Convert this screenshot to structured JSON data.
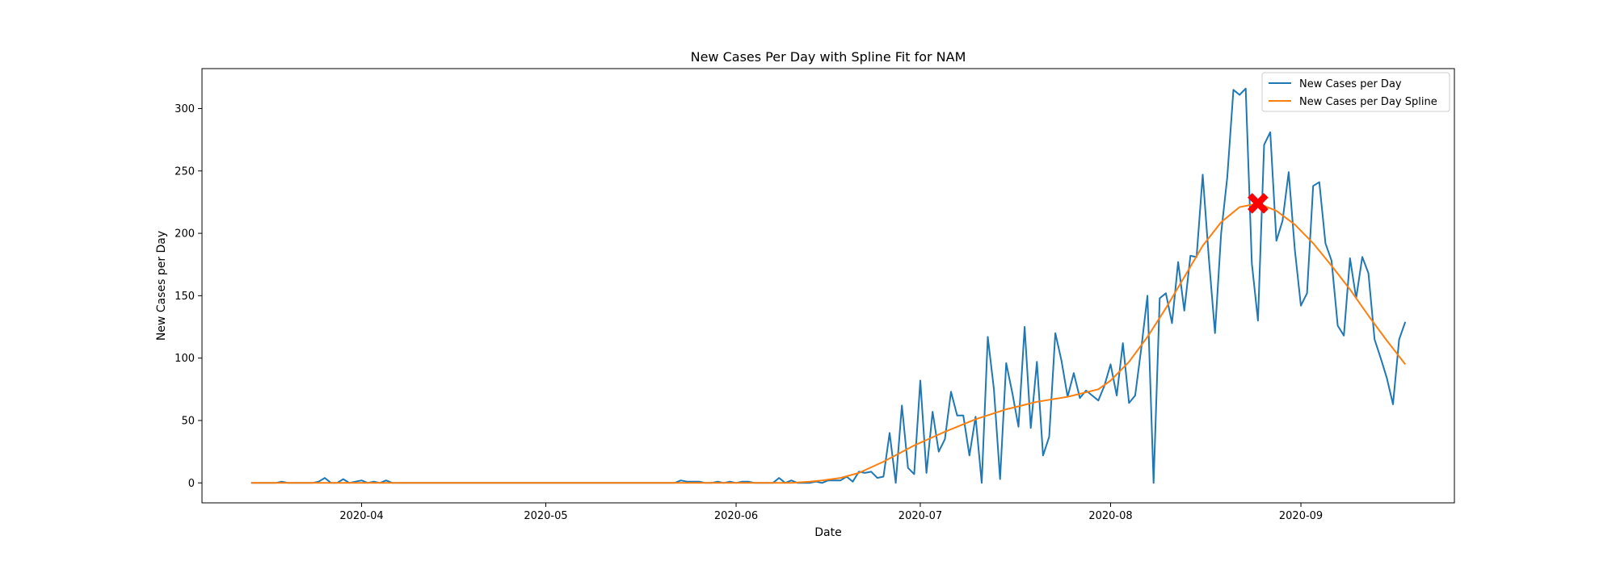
{
  "chart_data": {
    "type": "line",
    "title": "New Cases Per Day with Spline Fit for NAM",
    "xlabel": "Date",
    "ylabel": "New Cases per Day",
    "x_ticks": [
      "2020-04",
      "2020-05",
      "2020-06",
      "2020-07",
      "2020-08",
      "2020-09"
    ],
    "y_ticks": [
      0,
      50,
      100,
      150,
      200,
      250,
      300
    ],
    "xlim": [
      "2020-03-06",
      "2020-09-26"
    ],
    "ylim": [
      -16,
      332
    ],
    "legend": {
      "position": "top-right",
      "entries": [
        "New Cases per Day",
        "New Cases per Day Spline"
      ]
    },
    "grid": false,
    "colors": {
      "raw": "#1f77b4",
      "spline": "#ff7f0e",
      "peak_marker": "#ff0000"
    },
    "peak": {
      "date": "2020-08-25",
      "value": 224
    },
    "series": [
      {
        "name": "New Cases per Day",
        "color": "#1f77b4",
        "points": [
          [
            "2020-03-14",
            0
          ],
          [
            "2020-03-16",
            0
          ],
          [
            "2020-03-18",
            0
          ],
          [
            "2020-03-19",
            1
          ],
          [
            "2020-03-20",
            0
          ],
          [
            "2020-03-22",
            0
          ],
          [
            "2020-03-24",
            0
          ],
          [
            "2020-03-25",
            1
          ],
          [
            "2020-03-26",
            4
          ],
          [
            "2020-03-27",
            0
          ],
          [
            "2020-03-28",
            0
          ],
          [
            "2020-03-29",
            3
          ],
          [
            "2020-03-30",
            0
          ],
          [
            "2020-03-31",
            1
          ],
          [
            "2020-04-01",
            2
          ],
          [
            "2020-04-02",
            0
          ],
          [
            "2020-04-03",
            1
          ],
          [
            "2020-04-04",
            0
          ],
          [
            "2020-04-05",
            2
          ],
          [
            "2020-04-06",
            0
          ],
          [
            "2020-04-08",
            0
          ],
          [
            "2020-04-15",
            0
          ],
          [
            "2020-05-01",
            0
          ],
          [
            "2020-05-20",
            0
          ],
          [
            "2020-05-22",
            0
          ],
          [
            "2020-05-23",
            2
          ],
          [
            "2020-05-24",
            1
          ],
          [
            "2020-05-25",
            1
          ],
          [
            "2020-05-26",
            1
          ],
          [
            "2020-05-27",
            0
          ],
          [
            "2020-05-28",
            0
          ],
          [
            "2020-05-29",
            1
          ],
          [
            "2020-05-30",
            0
          ],
          [
            "2020-05-31",
            1
          ],
          [
            "2020-06-01",
            0
          ],
          [
            "2020-06-02",
            1
          ],
          [
            "2020-06-03",
            1
          ],
          [
            "2020-06-04",
            0
          ],
          [
            "2020-06-07",
            0
          ],
          [
            "2020-06-08",
            4
          ],
          [
            "2020-06-09",
            0
          ],
          [
            "2020-06-10",
            2
          ],
          [
            "2020-06-11",
            0
          ],
          [
            "2020-06-13",
            0
          ],
          [
            "2020-06-14",
            1
          ],
          [
            "2020-06-15",
            0
          ],
          [
            "2020-06-16",
            2
          ],
          [
            "2020-06-17",
            2
          ],
          [
            "2020-06-18",
            2
          ],
          [
            "2020-06-19",
            5
          ],
          [
            "2020-06-20",
            1
          ],
          [
            "2020-06-21",
            9
          ],
          [
            "2020-06-22",
            8
          ],
          [
            "2020-06-23",
            9
          ],
          [
            "2020-06-24",
            4
          ],
          [
            "2020-06-25",
            5
          ],
          [
            "2020-06-26",
            40
          ],
          [
            "2020-06-27",
            0
          ],
          [
            "2020-06-28",
            62
          ],
          [
            "2020-06-29",
            12
          ],
          [
            "2020-06-30",
            7
          ],
          [
            "2020-07-01",
            82
          ],
          [
            "2020-07-02",
            8
          ],
          [
            "2020-07-03",
            57
          ],
          [
            "2020-07-04",
            25
          ],
          [
            "2020-07-05",
            35
          ],
          [
            "2020-07-06",
            73
          ],
          [
            "2020-07-07",
            54
          ],
          [
            "2020-07-08",
            54
          ],
          [
            "2020-07-09",
            22
          ],
          [
            "2020-07-10",
            53
          ],
          [
            "2020-07-11",
            0
          ],
          [
            "2020-07-12",
            117
          ],
          [
            "2020-07-13",
            75
          ],
          [
            "2020-07-14",
            3
          ],
          [
            "2020-07-15",
            96
          ],
          [
            "2020-07-16",
            72
          ],
          [
            "2020-07-17",
            45
          ],
          [
            "2020-07-18",
            125
          ],
          [
            "2020-07-19",
            44
          ],
          [
            "2020-07-20",
            97
          ],
          [
            "2020-07-21",
            22
          ],
          [
            "2020-07-22",
            37
          ],
          [
            "2020-07-23",
            120
          ],
          [
            "2020-07-24",
            98
          ],
          [
            "2020-07-25",
            69
          ],
          [
            "2020-07-26",
            88
          ],
          [
            "2020-07-27",
            68
          ],
          [
            "2020-07-28",
            74
          ],
          [
            "2020-07-29",
            70
          ],
          [
            "2020-07-30",
            66
          ],
          [
            "2020-07-31",
            78
          ],
          [
            "2020-08-01",
            95
          ],
          [
            "2020-08-02",
            70
          ],
          [
            "2020-08-03",
            112
          ],
          [
            "2020-08-04",
            64
          ],
          [
            "2020-08-05",
            70
          ],
          [
            "2020-08-06",
            108
          ],
          [
            "2020-08-07",
            150
          ],
          [
            "2020-08-08",
            0
          ],
          [
            "2020-08-09",
            148
          ],
          [
            "2020-08-10",
            152
          ],
          [
            "2020-08-11",
            128
          ],
          [
            "2020-08-12",
            177
          ],
          [
            "2020-08-13",
            138
          ],
          [
            "2020-08-14",
            182
          ],
          [
            "2020-08-15",
            181
          ],
          [
            "2020-08-16",
            247
          ],
          [
            "2020-08-17",
            180
          ],
          [
            "2020-08-18",
            120
          ],
          [
            "2020-08-19",
            200
          ],
          [
            "2020-08-20",
            245
          ],
          [
            "2020-08-21",
            315
          ],
          [
            "2020-08-22",
            311
          ],
          [
            "2020-08-23",
            316
          ],
          [
            "2020-08-24",
            176
          ],
          [
            "2020-08-25",
            130
          ],
          [
            "2020-08-26",
            271
          ],
          [
            "2020-08-27",
            281
          ],
          [
            "2020-08-28",
            194
          ],
          [
            "2020-08-29",
            210
          ],
          [
            "2020-08-30",
            249
          ],
          [
            "2020-08-31",
            187
          ],
          [
            "2020-09-01",
            142
          ],
          [
            "2020-09-02",
            152
          ],
          [
            "2020-09-03",
            238
          ],
          [
            "2020-09-04",
            241
          ],
          [
            "2020-09-05",
            192
          ],
          [
            "2020-09-06",
            178
          ],
          [
            "2020-09-07",
            126
          ],
          [
            "2020-09-08",
            118
          ],
          [
            "2020-09-09",
            180
          ],
          [
            "2020-09-10",
            148
          ],
          [
            "2020-09-11",
            181
          ],
          [
            "2020-09-12",
            168
          ],
          [
            "2020-09-13",
            115
          ],
          [
            "2020-09-14",
            100
          ],
          [
            "2020-09-15",
            84
          ],
          [
            "2020-09-16",
            63
          ],
          [
            "2020-09-17",
            115
          ],
          [
            "2020-09-18",
            129
          ]
        ]
      },
      {
        "name": "New Cases per Day Spline",
        "color": "#ff7f0e",
        "points": [
          [
            "2020-03-14",
            0
          ],
          [
            "2020-04-01",
            0
          ],
          [
            "2020-05-01",
            0
          ],
          [
            "2020-05-25",
            0
          ],
          [
            "2020-06-05",
            0
          ],
          [
            "2020-06-10",
            0
          ],
          [
            "2020-06-13",
            1
          ],
          [
            "2020-06-15",
            2
          ],
          [
            "2020-06-18",
            4
          ],
          [
            "2020-06-21",
            8
          ],
          [
            "2020-06-25",
            17
          ],
          [
            "2020-06-30",
            30
          ],
          [
            "2020-07-05",
            41
          ],
          [
            "2020-07-10",
            51
          ],
          [
            "2020-07-15",
            59
          ],
          [
            "2020-07-20",
            65
          ],
          [
            "2020-07-25",
            69
          ],
          [
            "2020-07-30",
            75
          ],
          [
            "2020-08-01",
            82
          ],
          [
            "2020-08-04",
            97
          ],
          [
            "2020-08-07",
            117
          ],
          [
            "2020-08-10",
            140
          ],
          [
            "2020-08-13",
            165
          ],
          [
            "2020-08-16",
            190
          ],
          [
            "2020-08-19",
            209
          ],
          [
            "2020-08-22",
            221
          ],
          [
            "2020-08-25",
            224
          ],
          [
            "2020-08-28",
            218
          ],
          [
            "2020-08-31",
            207
          ],
          [
            "2020-09-03",
            192
          ],
          [
            "2020-09-06",
            174
          ],
          [
            "2020-09-09",
            155
          ],
          [
            "2020-09-12",
            134
          ],
          [
            "2020-09-15",
            114
          ],
          [
            "2020-09-18",
            95
          ]
        ]
      }
    ]
  }
}
